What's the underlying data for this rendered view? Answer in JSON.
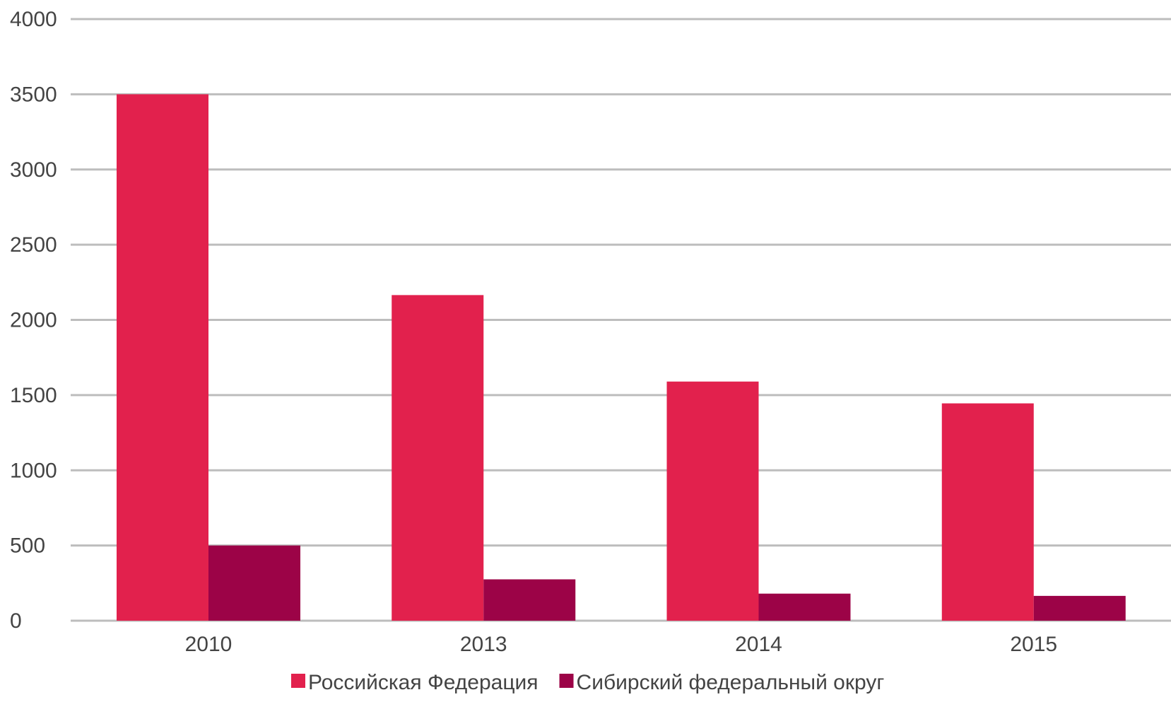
{
  "chart_data": {
    "type": "bar",
    "title": "",
    "xlabel": "",
    "ylabel": "",
    "categories": [
      "2010",
      "2013",
      "2014",
      "2015"
    ],
    "ylim": [
      0,
      4000
    ],
    "yticks": [
      0,
      500,
      1000,
      1500,
      2000,
      2500,
      3000,
      3500,
      4000
    ],
    "grid": true,
    "legend_position": "bottom",
    "series": [
      {
        "name": "Российская Федерация",
        "color": "#e2214d",
        "values": [
          3500,
          2165,
          1590,
          1445
        ]
      },
      {
        "name": "Сибирский федеральный округ",
        "color": "#9c0347",
        "values": [
          500,
          275,
          180,
          165
        ]
      }
    ]
  }
}
